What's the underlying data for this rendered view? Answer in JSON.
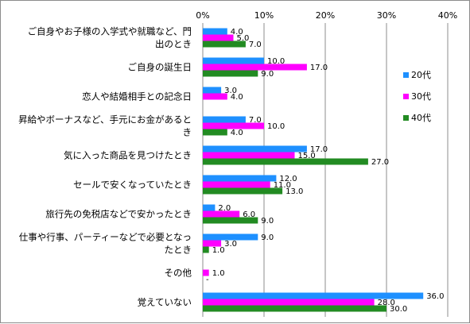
{
  "chart_data": {
    "type": "bar",
    "orientation": "horizontal",
    "categories": [
      [
        "ご自身やお子様の入学式や就職など、門",
        "出のとき"
      ],
      [
        "ご自身の誕生日"
      ],
      [
        "恋人や結婚相手との記念日"
      ],
      [
        "昇給やボーナスなど、手元にお金があると",
        "き"
      ],
      [
        "気に入った商品を見つけたとき"
      ],
      [
        "セールで安くなっていたとき"
      ],
      [
        "旅行先の免税店などで安かったとき"
      ],
      [
        "仕事や行事、パーティーなどで必要となっ",
        "たとき"
      ],
      [
        "その他"
      ],
      [
        "覚えていない"
      ]
    ],
    "series": [
      {
        "name": "20代",
        "color": "#1E90FF",
        "values": [
          4.0,
          10.0,
          3.0,
          7.0,
          17.0,
          12.0,
          2.0,
          9.0,
          0.0,
          36.0
        ],
        "labels": [
          "4.0",
          "10.0",
          "3.0",
          "7.0",
          "17.0",
          "12.0",
          "2.0",
          "9.0",
          "",
          "36.0"
        ]
      },
      {
        "name": "30代",
        "color": "#FF00FF",
        "values": [
          5.0,
          17.0,
          4.0,
          10.0,
          15.0,
          11.0,
          6.0,
          3.0,
          1.0,
          28.0
        ],
        "labels": [
          "5.0",
          "17.0",
          "4.0",
          "10.0",
          "15.0",
          "11.0",
          "6.0",
          "3.0",
          "1.0",
          "28.0"
        ]
      },
      {
        "name": "40代",
        "color": "#228B22",
        "values": [
          7.0,
          9.0,
          0.0,
          4.0,
          27.0,
          13.0,
          9.0,
          1.0,
          0.0,
          30.0
        ],
        "labels": [
          "7.0",
          "9.0",
          "",
          "4.0",
          "27.0",
          "13.0",
          "9.0",
          "1.0",
          "-",
          "30.0"
        ]
      }
    ],
    "x_ticks": [
      "0%",
      "10%",
      "20%",
      "30%",
      "40%"
    ],
    "xlim": [
      0,
      40
    ],
    "axis_position": "top",
    "grid": true,
    "legend_position": "right"
  }
}
